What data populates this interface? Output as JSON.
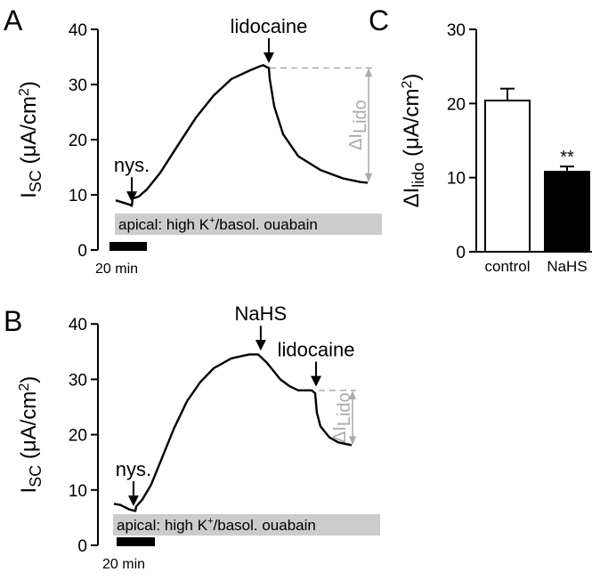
{
  "panel_labels": {
    "a": "A",
    "b": "B",
    "c": "C"
  },
  "chart_data": [
    {
      "type": "line",
      "panel": "A",
      "ylabel": {
        "main": "I",
        "sub": "SC",
        "unit": " (μA/cm",
        "sup": "2",
        "close": ")"
      },
      "ylim": [
        0,
        40
      ],
      "yticks": [
        "0",
        "10",
        "20",
        "30",
        "40"
      ],
      "scale_bar": {
        "label": "20 min",
        "minutes": 20
      },
      "condition_bar": {
        "pre": "apical: high K",
        "sup": "+",
        "post": "/basol. ouabain",
        "color": "#cccccc"
      },
      "x_units": "min",
      "series": [
        {
          "points": [
            [
              0,
              9
            ],
            [
              7.6,
              8.2
            ],
            [
              8.6,
              8.0
            ],
            [
              9.0,
              9.3
            ],
            [
              10.5,
              9.5
            ],
            [
              12.4,
              9.7
            ],
            [
              16.7,
              11
            ],
            [
              23.8,
              14
            ],
            [
              33.3,
              19
            ],
            [
              42.9,
              24
            ],
            [
              52.4,
              28
            ],
            [
              61.9,
              31
            ],
            [
              71.4,
              32.5
            ],
            [
              77.1,
              33.3
            ],
            [
              79,
              33.5
            ],
            [
              80.5,
              33.2
            ],
            [
              81.9,
              33
            ],
            [
              82.4,
              31
            ],
            [
              84.8,
              26
            ],
            [
              89.5,
              21
            ],
            [
              97.6,
              17
            ],
            [
              109.5,
              14.5
            ],
            [
              121.4,
              13
            ],
            [
              131,
              12.3
            ],
            [
              134.8,
              12.2
            ]
          ]
        }
      ],
      "events": [
        {
          "label": "nys.",
          "t": 8.6,
          "y": 8.2
        },
        {
          "label": "lidocaine",
          "t": 81.9,
          "y": 33.4
        }
      ],
      "delta": {
        "label_main": "ΔI",
        "label_sub": "Lido",
        "from": 33,
        "to": 12.3,
        "t_start": 82.4,
        "t_end": 134.8,
        "color": "#aaaaaa"
      }
    },
    {
      "type": "line",
      "panel": "B",
      "ylabel": {
        "main": "I",
        "sub": "SC",
        "unit": " (μA/cm",
        "sup": "2",
        "close": ")"
      },
      "ylim": [
        0,
        40
      ],
      "yticks": [
        "0",
        "10",
        "20",
        "30",
        "40"
      ],
      "scale_bar": {
        "label": "20 min",
        "minutes": 20
      },
      "condition_bar": {
        "pre": "apical: high K",
        "sup": "+",
        "post": "/basol. ouabain",
        "color": "#cccccc"
      },
      "x_units": "min",
      "series": [
        {
          "points": [
            [
              0,
              7.5
            ],
            [
              3.3,
              7.3
            ],
            [
              7.9,
              6.5
            ],
            [
              11.2,
              6.2
            ],
            [
              11.6,
              7
            ],
            [
              14.9,
              8.3
            ],
            [
              19.5,
              11
            ],
            [
              24.2,
              15
            ],
            [
              31.2,
              21
            ],
            [
              38.1,
              26
            ],
            [
              45.1,
              29.5
            ],
            [
              52.1,
              32
            ],
            [
              61.4,
              33.8
            ],
            [
              70.7,
              34.5
            ],
            [
              75.3,
              34.5
            ],
            [
              79.9,
              33
            ],
            [
              86.9,
              30
            ],
            [
              91.6,
              28.8
            ],
            [
              96.3,
              28
            ],
            [
              103.3,
              28
            ],
            [
              105.1,
              27.5
            ],
            [
              106.0,
              24
            ],
            [
              107.9,
              21.5
            ],
            [
              112.6,
              19.5
            ],
            [
              117.2,
              18.6
            ],
            [
              124.2,
              18.1
            ]
          ]
        }
      ],
      "events": [
        {
          "label": "nys.",
          "t": 10.2,
          "y": 6.6
        },
        {
          "label": "NaHS",
          "t": 76.7,
          "y": 34.7
        },
        {
          "label": "lidocaine",
          "t": 105.6,
          "y": 28.2
        }
      ],
      "delta": {
        "label_main": "ΔI",
        "label_sub": "Lido",
        "from": 28,
        "to": 18.1,
        "t_start": 107,
        "t_end": 124.2,
        "color": "#aaaaaa"
      }
    },
    {
      "type": "bar",
      "panel": "C",
      "ylabel": {
        "main": "ΔI",
        "sub": "lido",
        "unit": " (μA/cm",
        "sup": "2",
        "close": ")"
      },
      "ylim": [
        0,
        30
      ],
      "yticks": [
        "0",
        "10",
        "20",
        "30"
      ],
      "categories": [
        "control",
        "NaHS"
      ],
      "values": [
        20.4,
        10.8
      ],
      "errors": [
        1.6,
        0.7
      ],
      "fills": [
        "#ffffff",
        "#000000"
      ],
      "annotations": [
        "",
        "**"
      ]
    }
  ]
}
